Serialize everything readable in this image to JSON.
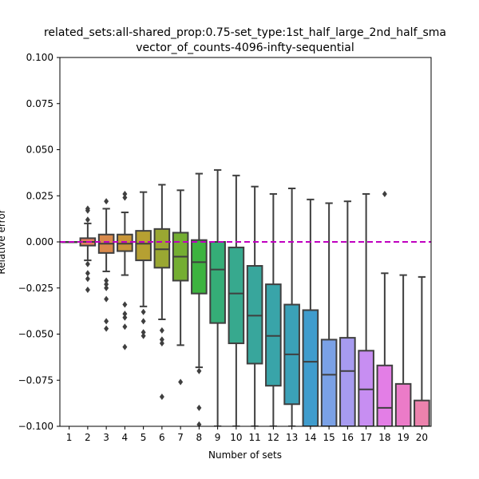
{
  "chart_data": {
    "type": "box",
    "title_line1": "related_sets:all-shared_prop:0.75-set_type:1st_half_large_2nd_half_sma",
    "title_line2": "vector_of_counts-4096-infty-sequential",
    "xlabel": "Number of sets",
    "ylabel": "Relative error",
    "ylim": [
      -0.1,
      0.1
    ],
    "yticks": [
      -0.1,
      -0.075,
      -0.05,
      -0.025,
      0.0,
      0.025,
      0.05,
      0.075,
      0.1
    ],
    "ytick_labels": [
      "−0.100",
      "−0.075",
      "−0.050",
      "−0.025",
      "0.000",
      "0.025",
      "0.050",
      "0.075",
      "0.100"
    ],
    "categories": [
      "1",
      "2",
      "3",
      "4",
      "5",
      "6",
      "7",
      "8",
      "9",
      "10",
      "11",
      "12",
      "13",
      "14",
      "15",
      "16",
      "17",
      "18",
      "19",
      "20"
    ],
    "reference_line": {
      "y": 0.0,
      "color": "#bf00bf",
      "style": "dashed"
    },
    "boxes": [
      {
        "category": "1",
        "q1": 0.0,
        "median": 0.0,
        "q3": 0.0,
        "whisker_low": 0.0,
        "whisker_high": 0.0,
        "outliers": [],
        "color": "#e8737a"
      },
      {
        "category": "2",
        "q1": -0.002,
        "median": 0.0,
        "q3": 0.002,
        "whisker_low": -0.01,
        "whisker_high": 0.01,
        "outliers": [
          0.018,
          0.017,
          0.012,
          -0.012,
          -0.017,
          -0.02,
          -0.026
        ],
        "color": "#e47d62"
      },
      {
        "category": "3",
        "q1": -0.006,
        "median": -0.001,
        "q3": 0.004,
        "whisker_low": -0.016,
        "whisker_high": 0.018,
        "outliers": [
          0.022,
          -0.021,
          -0.023,
          -0.025,
          -0.031,
          -0.043,
          -0.047
        ],
        "color": "#d8894b"
      },
      {
        "category": "4",
        "q1": -0.005,
        "median": -0.001,
        "q3": 0.004,
        "whisker_low": -0.018,
        "whisker_high": 0.016,
        "outliers": [
          0.026,
          0.024,
          -0.034,
          -0.039,
          -0.041,
          -0.046,
          -0.057
        ],
        "color": "#c89639"
      },
      {
        "category": "5",
        "q1": -0.01,
        "median": -0.001,
        "q3": 0.006,
        "whisker_low": -0.035,
        "whisker_high": 0.027,
        "outliers": [
          -0.038,
          -0.043,
          -0.049,
          -0.051
        ],
        "color": "#b6a032"
      },
      {
        "category": "6",
        "q1": -0.014,
        "median": -0.004,
        "q3": 0.007,
        "whisker_low": -0.042,
        "whisker_high": 0.031,
        "outliers": [
          -0.048,
          -0.053,
          -0.055,
          -0.084
        ],
        "color": "#9aa732"
      },
      {
        "category": "7",
        "q1": -0.021,
        "median": -0.008,
        "q3": 0.005,
        "whisker_low": -0.056,
        "whisker_high": 0.028,
        "outliers": [
          -0.076
        ],
        "color": "#74ae32"
      },
      {
        "category": "8",
        "q1": -0.028,
        "median": -0.011,
        "q3": 0.001,
        "whisker_low": -0.068,
        "whisker_high": 0.037,
        "outliers": [
          -0.07,
          -0.09,
          -0.099
        ],
        "color": "#3db33f"
      },
      {
        "category": "9",
        "q1": -0.044,
        "median": -0.015,
        "q3": 0.0,
        "whisker_low": -0.1,
        "whisker_high": 0.039,
        "outliers": [],
        "color": "#35ad77"
      },
      {
        "category": "10",
        "q1": -0.055,
        "median": -0.028,
        "q3": -0.003,
        "whisker_low": -0.1,
        "whisker_high": 0.036,
        "outliers": [],
        "color": "#37a98e"
      },
      {
        "category": "11",
        "q1": -0.066,
        "median": -0.04,
        "q3": -0.013,
        "whisker_low": -0.1,
        "whisker_high": 0.03,
        "outliers": [],
        "color": "#38a69c"
      },
      {
        "category": "12",
        "q1": -0.078,
        "median": -0.051,
        "q3": -0.023,
        "whisker_low": -0.1,
        "whisker_high": 0.026,
        "outliers": [],
        "color": "#39a4a9"
      },
      {
        "category": "13",
        "q1": -0.088,
        "median": -0.061,
        "q3": -0.034,
        "whisker_low": -0.1,
        "whisker_high": 0.029,
        "outliers": [],
        "color": "#3ba1b8"
      },
      {
        "category": "14",
        "q1": -0.1,
        "median": -0.065,
        "q3": -0.037,
        "whisker_low": -0.1,
        "whisker_high": 0.023,
        "outliers": [],
        "color": "#3f9ccd"
      },
      {
        "category": "15",
        "q1": -0.1,
        "median": -0.072,
        "q3": -0.053,
        "whisker_low": -0.1,
        "whisker_high": 0.021,
        "outliers": [],
        "color": "#7aa1e6"
      },
      {
        "category": "16",
        "q1": -0.1,
        "median": -0.07,
        "q3": -0.052,
        "whisker_low": -0.1,
        "whisker_high": 0.022,
        "outliers": [],
        "color": "#a79bf0"
      },
      {
        "category": "17",
        "q1": -0.1,
        "median": -0.08,
        "q3": -0.059,
        "whisker_low": -0.1,
        "whisker_high": 0.026,
        "outliers": [],
        "color": "#c78ef2"
      },
      {
        "category": "18",
        "q1": -0.1,
        "median": -0.09,
        "q3": -0.067,
        "whisker_low": -0.1,
        "whisker_high": -0.017,
        "outliers": [
          0.026
        ],
        "color": "#e37ee6"
      },
      {
        "category": "19",
        "q1": -0.1,
        "median": -0.1,
        "q3": -0.077,
        "whisker_low": -0.1,
        "whisker_high": -0.018,
        "outliers": [],
        "color": "#eb7bc8"
      },
      {
        "category": "20",
        "q1": -0.1,
        "median": -0.1,
        "q3": -0.086,
        "whisker_low": -0.1,
        "whisker_high": -0.019,
        "outliers": [],
        "color": "#ec82ad"
      }
    ],
    "grid": false,
    "legend": "none"
  }
}
